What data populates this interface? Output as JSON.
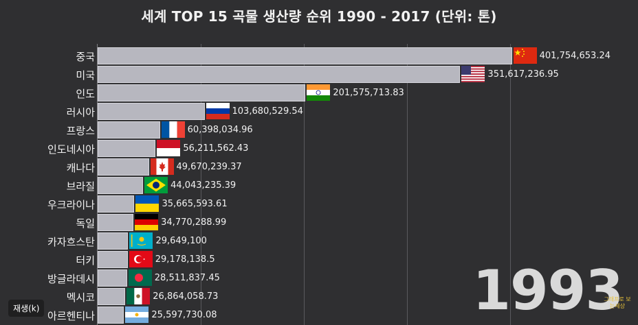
{
  "chart_data": {
    "type": "bar",
    "orientation": "horizontal",
    "title": "세계 TOP 15 곡물 생산량 순위 1990 - 2017 (단위: 톤)",
    "year": "1993",
    "xlim": [
      0,
      410000000
    ],
    "grid": true,
    "categories": [
      "중국",
      "미국",
      "인도",
      "러시아",
      "프랑스",
      "인도네시아",
      "캐나다",
      "브라질",
      "우크라이나",
      "독일",
      "카자흐스탄",
      "터키",
      "방글라데시",
      "멕시코",
      "아르헨티나"
    ],
    "values": [
      401754653.24,
      351617236.95,
      201575713.83,
      103680529.54,
      60398034.96,
      56211562.43,
      49670239.37,
      44043235.39,
      35665593.61,
      34770288.99,
      29649100,
      29178138.5,
      28511837.45,
      26864058.73,
      25597730.08
    ],
    "value_labels": [
      "401,754,653.24",
      "351,617,236.95",
      "201,575,713.83",
      "103,680,529.54",
      "60,398,034.96",
      "56,211,562.43",
      "49,670,239.37",
      "44,043,235.39",
      "35,665,593.61",
      "34,770,288.99",
      "29,649,100",
      "29,178,138.5",
      "28,511,837.45",
      "26,864,058.73",
      "25,597,730.08"
    ],
    "flags": [
      "china-flag",
      "usa-flag",
      "india-flag",
      "russia-flag",
      "france-flag",
      "indonesia-flag",
      "canada-flag",
      "brazil-flag",
      "ukraine-flag",
      "germany-flag",
      "kazakhstan-flag",
      "turkey-flag",
      "bangladesh-flag",
      "mexico-flag",
      "argentina-flag"
    ]
  },
  "player": {
    "play_label": "재생(k)"
  },
  "watermark": "그래프로 보는세상",
  "colors": {
    "background": "#2f2f31",
    "bar": "#b7b7bf",
    "grid": "#5a5a5e"
  }
}
